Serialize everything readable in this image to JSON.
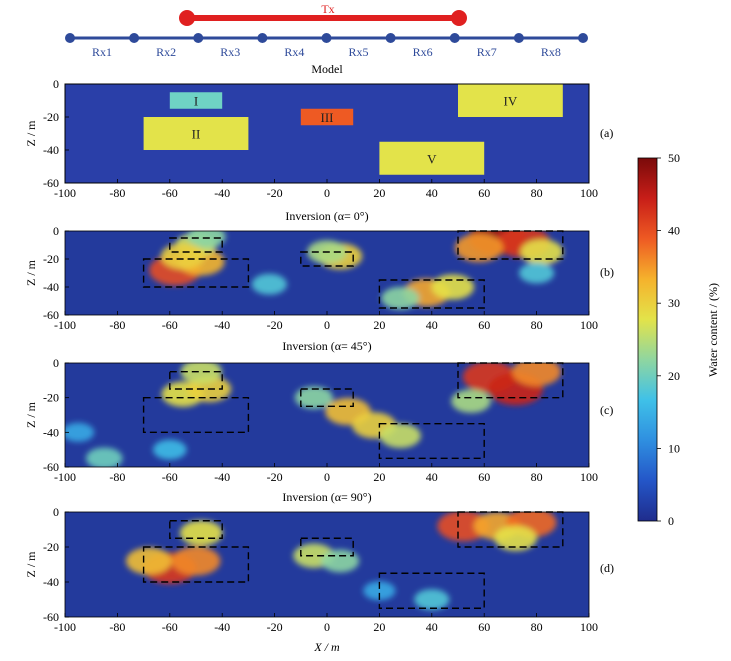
{
  "chart_data": {
    "type": "heatmap",
    "survey": {
      "tx_label": "Tx",
      "rx_labels": [
        "Rx1",
        "Rx2",
        "Rx3",
        "Rx4",
        "Rx5",
        "Rx6",
        "Rx7",
        "Rx8"
      ],
      "tx_extent_x": [
        -53,
        50
      ],
      "electrodes_x": [
        -100,
        -75,
        -50,
        -25,
        0,
        25,
        50,
        75,
        100
      ]
    },
    "axes": {
      "xlabel": "X / m",
      "ylabel": "Z / m",
      "xlim": [
        -100,
        100
      ],
      "ylim": [
        -60,
        0
      ],
      "xticks": [
        -100,
        -80,
        -60,
        -40,
        -20,
        0,
        20,
        40,
        60,
        80,
        100
      ],
      "yticks": [
        0,
        -20,
        -40,
        -60
      ]
    },
    "colorbar": {
      "label": "Water content / (%)",
      "min": 0,
      "max": 50,
      "ticks": [
        0,
        10,
        20,
        30,
        40,
        50
      ],
      "colors": [
        "#1f2c8c",
        "#2456c8",
        "#2f8fe0",
        "#3fc1e8",
        "#8fd6a0",
        "#e3e34a",
        "#f5b22c",
        "#ee5a23",
        "#c81e18",
        "#7a0a0a"
      ]
    },
    "panels": [
      {
        "id": "a",
        "letter": "(a)",
        "title": "Model",
        "background": 2,
        "blocks": [
          {
            "label": "I",
            "x": [
              -60,
              -40
            ],
            "z": [
              -15,
              -5
            ],
            "value": 20
          },
          {
            "label": "II",
            "x": [
              -70,
              -30
            ],
            "z": [
              -40,
              -20
            ],
            "value": 30
          },
          {
            "label": "III",
            "x": [
              -10,
              10
            ],
            "z": [
              -25,
              -15
            ],
            "value": 40
          },
          {
            "label": "IV",
            "x": [
              50,
              90
            ],
            "z": [
              -20,
              0
            ],
            "value": 30
          },
          {
            "label": "V",
            "x": [
              20,
              60
            ],
            "z": [
              -55,
              -35
            ],
            "value": 30
          }
        ]
      },
      {
        "id": "b",
        "letter": "(b)",
        "title": "Inversion (α= 0°)",
        "background": 8,
        "anomalies": [
          {
            "x": -58,
            "z": -28,
            "value": 40
          },
          {
            "x": -48,
            "z": -22,
            "value": 33
          },
          {
            "x": -50,
            "z": -10,
            "value": 26
          },
          {
            "x": -46,
            "z": -4,
            "value": 22
          },
          {
            "x": -55,
            "z": -18,
            "value": 30
          },
          {
            "x": 5,
            "z": -18,
            "value": 30
          },
          {
            "x": 0,
            "z": -15,
            "value": 24
          },
          {
            "x": 38,
            "z": -44,
            "value": 34
          },
          {
            "x": 48,
            "z": -40,
            "value": 28
          },
          {
            "x": 28,
            "z": -48,
            "value": 22
          },
          {
            "x": 65,
            "z": -5,
            "value": 47
          },
          {
            "x": 75,
            "z": -8,
            "value": 42
          },
          {
            "x": 58,
            "z": -12,
            "value": 35
          },
          {
            "x": 82,
            "z": -15,
            "value": 28
          },
          {
            "x": -22,
            "z": -38,
            "value": 18
          },
          {
            "x": 80,
            "z": -30,
            "value": 18
          }
        ]
      },
      {
        "id": "c",
        "letter": "(c)",
        "title": "Inversion (α= 45°)",
        "background": 8,
        "anomalies": [
          {
            "x": -55,
            "z": -18,
            "value": 28
          },
          {
            "x": -45,
            "z": -15,
            "value": 30
          },
          {
            "x": -48,
            "z": -5,
            "value": 26
          },
          {
            "x": 8,
            "z": -28,
            "value": 32
          },
          {
            "x": 18,
            "z": -36,
            "value": 30
          },
          {
            "x": 28,
            "z": -42,
            "value": 26
          },
          {
            "x": -5,
            "z": -20,
            "value": 22
          },
          {
            "x": 62,
            "z": -8,
            "value": 42
          },
          {
            "x": 72,
            "z": -15,
            "value": 44
          },
          {
            "x": 80,
            "z": -5,
            "value": 36
          },
          {
            "x": 55,
            "z": -22,
            "value": 24
          },
          {
            "x": -85,
            "z": -55,
            "value": 20
          },
          {
            "x": -60,
            "z": -50,
            "value": 16
          },
          {
            "x": -95,
            "z": -40,
            "value": 14
          }
        ]
      },
      {
        "id": "d",
        "letter": "(d)",
        "title": "Inversion (α= 90°)",
        "background": 8,
        "anomalies": [
          {
            "x": -60,
            "z": -32,
            "value": 42
          },
          {
            "x": -50,
            "z": -28,
            "value": 36
          },
          {
            "x": -68,
            "z": -28,
            "value": 32
          },
          {
            "x": -48,
            "z": -12,
            "value": 28
          },
          {
            "x": -5,
            "z": -25,
            "value": 26
          },
          {
            "x": 5,
            "z": -28,
            "value": 22
          },
          {
            "x": 52,
            "z": -8,
            "value": 40
          },
          {
            "x": 65,
            "z": -8,
            "value": 34
          },
          {
            "x": 78,
            "z": -6,
            "value": 38
          },
          {
            "x": 72,
            "z": -15,
            "value": 28
          },
          {
            "x": 40,
            "z": -50,
            "value": 18
          },
          {
            "x": 20,
            "z": -45,
            "value": 14
          }
        ]
      }
    ]
  }
}
